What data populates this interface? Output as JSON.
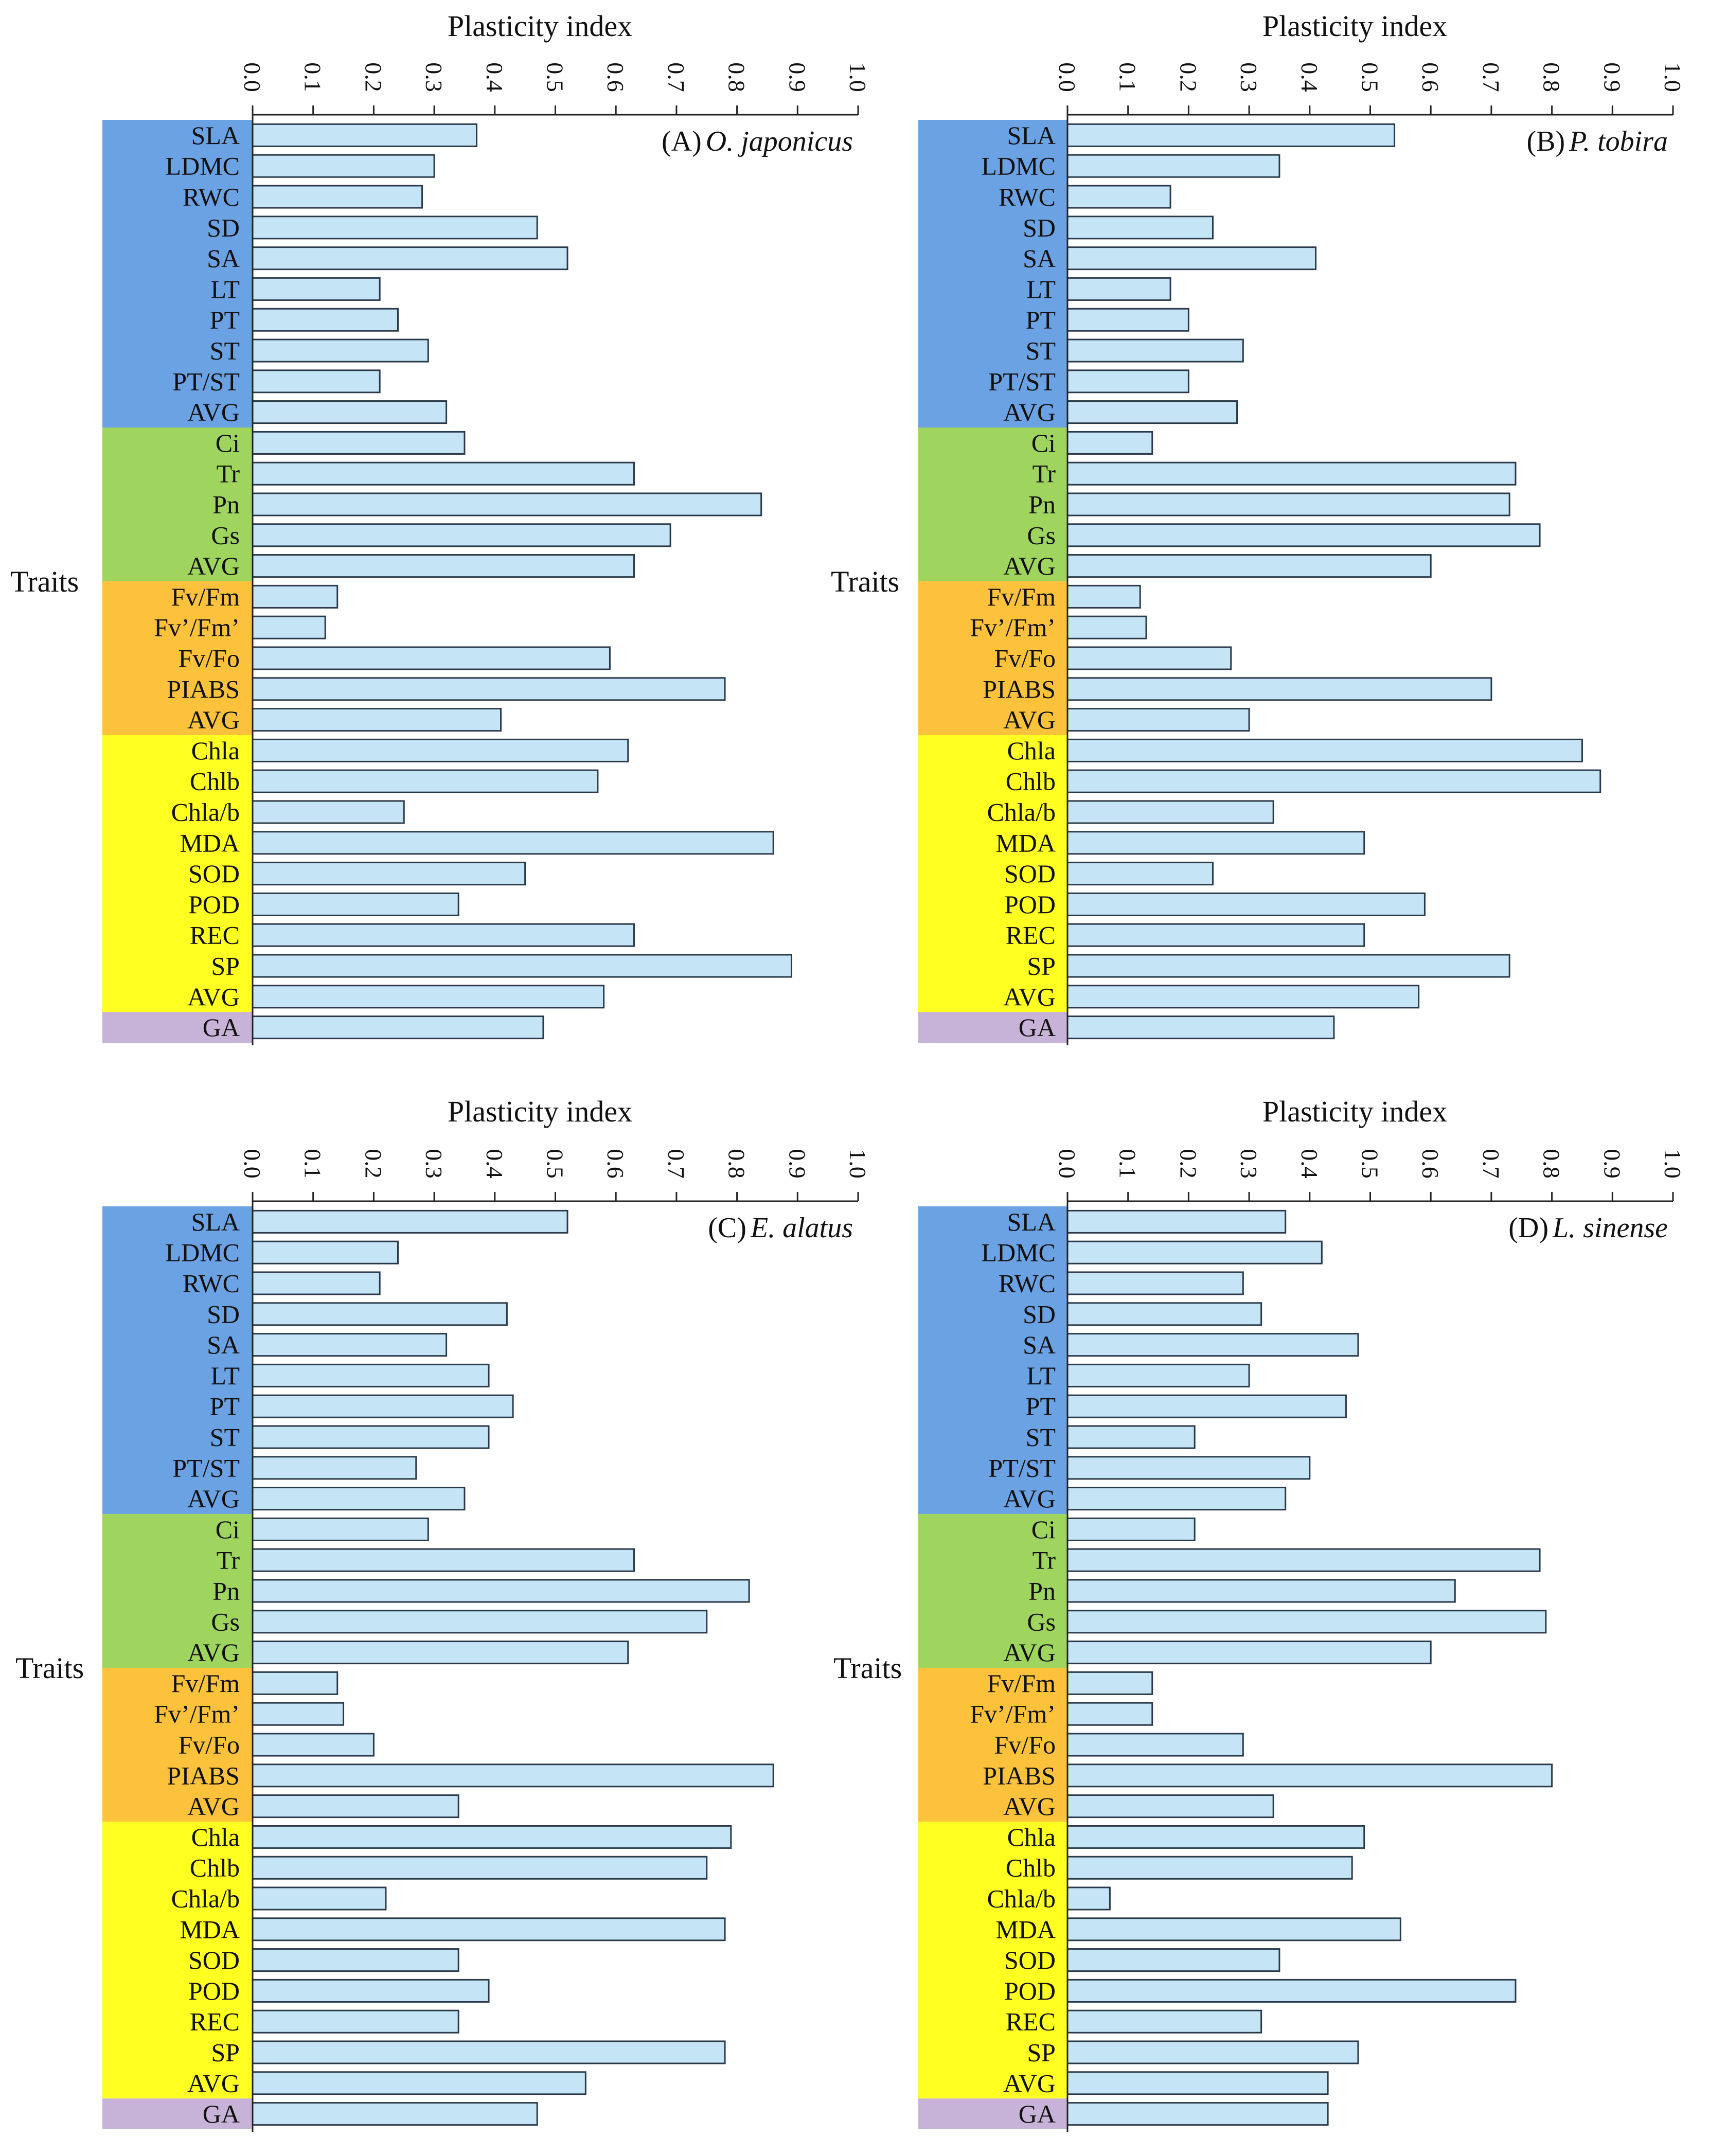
{
  "figure": {
    "x_axis_title": "Plasticity index",
    "y_axis_title": "Traits",
    "x_ticks": [
      "0.0",
      "0.1",
      "0.2",
      "0.3",
      "0.4",
      "0.5",
      "0.6",
      "0.7",
      "0.8",
      "0.9",
      "1.0"
    ],
    "group_colors": {
      "morphological": "#6aa2e3",
      "photosynthetic": "#9fd45f",
      "fluorescence": "#fcc23c",
      "biochemical": "#ffff22",
      "overall": "#c7b3d8"
    },
    "bar_color": "#c5e4f5",
    "bar_stroke": "#2b3a4a"
  },
  "chart_data": [
    {
      "type": "bar",
      "orientation": "horizontal",
      "panel": "(A)",
      "species": "O. japonicus",
      "xlabel": "Plasticity index",
      "ylabel": "Traits",
      "xlim": [
        0,
        1.0
      ],
      "categories": [
        "SLA",
        "LDMC",
        "RWC",
        "SD",
        "SA",
        "LT",
        "PT",
        "ST",
        "PT/ST",
        "AVG",
        "Ci",
        "Tr",
        "Pn",
        "Gs",
        "AVG",
        "Fv/Fm",
        "Fv’/Fm’",
        "Fv/Fo",
        "PIABS",
        "AVG",
        "Chla",
        "Chlb",
        "Chla/b",
        "MDA",
        "SOD",
        "POD",
        "REC",
        "SP",
        "AVG",
        "GA"
      ],
      "groups": [
        "morphological",
        "morphological",
        "morphological",
        "morphological",
        "morphological",
        "morphological",
        "morphological",
        "morphological",
        "morphological",
        "morphological",
        "photosynthetic",
        "photosynthetic",
        "photosynthetic",
        "photosynthetic",
        "photosynthetic",
        "fluorescence",
        "fluorescence",
        "fluorescence",
        "fluorescence",
        "fluorescence",
        "biochemical",
        "biochemical",
        "biochemical",
        "biochemical",
        "biochemical",
        "biochemical",
        "biochemical",
        "biochemical",
        "biochemical",
        "overall"
      ],
      "values": [
        0.37,
        0.3,
        0.28,
        0.47,
        0.52,
        0.21,
        0.24,
        0.29,
        0.21,
        0.32,
        0.35,
        0.63,
        0.84,
        0.69,
        0.63,
        0.14,
        0.12,
        0.59,
        0.78,
        0.41,
        0.62,
        0.57,
        0.25,
        0.86,
        0.45,
        0.34,
        0.63,
        0.89,
        0.58,
        0.48
      ]
    },
    {
      "type": "bar",
      "orientation": "horizontal",
      "panel": "(B)",
      "species": "P. tobira",
      "xlabel": "Plasticity index",
      "ylabel": "Traits",
      "xlim": [
        0,
        1.0
      ],
      "categories": [
        "SLA",
        "LDMC",
        "RWC",
        "SD",
        "SA",
        "LT",
        "PT",
        "ST",
        "PT/ST",
        "AVG",
        "Ci",
        "Tr",
        "Pn",
        "Gs",
        "AVG",
        "Fv/Fm",
        "Fv’/Fm’",
        "Fv/Fo",
        "PIABS",
        "AVG",
        "Chla",
        "Chlb",
        "Chla/b",
        "MDA",
        "SOD",
        "POD",
        "REC",
        "SP",
        "AVG",
        "GA"
      ],
      "groups": [
        "morphological",
        "morphological",
        "morphological",
        "morphological",
        "morphological",
        "morphological",
        "morphological",
        "morphological",
        "morphological",
        "morphological",
        "photosynthetic",
        "photosynthetic",
        "photosynthetic",
        "photosynthetic",
        "photosynthetic",
        "fluorescence",
        "fluorescence",
        "fluorescence",
        "fluorescence",
        "fluorescence",
        "biochemical",
        "biochemical",
        "biochemical",
        "biochemical",
        "biochemical",
        "biochemical",
        "biochemical",
        "biochemical",
        "biochemical",
        "overall"
      ],
      "values": [
        0.54,
        0.35,
        0.17,
        0.24,
        0.41,
        0.17,
        0.2,
        0.29,
        0.2,
        0.28,
        0.14,
        0.74,
        0.73,
        0.78,
        0.6,
        0.12,
        0.13,
        0.27,
        0.7,
        0.3,
        0.85,
        0.88,
        0.34,
        0.49,
        0.24,
        0.59,
        0.49,
        0.73,
        0.58,
        0.44
      ]
    },
    {
      "type": "bar",
      "orientation": "horizontal",
      "panel": "(C)",
      "species": "E. alatus",
      "xlabel": "Plasticity index",
      "ylabel": "Traits",
      "xlim": [
        0,
        1.0
      ],
      "categories": [
        "SLA",
        "LDMC",
        "RWC",
        "SD",
        "SA",
        "LT",
        "PT",
        "ST",
        "PT/ST",
        "AVG",
        "Ci",
        "Tr",
        "Pn",
        "Gs",
        "AVG",
        "Fv/Fm",
        "Fv’/Fm’",
        "Fv/Fo",
        "PIABS",
        "AVG",
        "Chla",
        "Chlb",
        "Chla/b",
        "MDA",
        "SOD",
        "POD",
        "REC",
        "SP",
        "AVG",
        "GA"
      ],
      "groups": [
        "morphological",
        "morphological",
        "morphological",
        "morphological",
        "morphological",
        "morphological",
        "morphological",
        "morphological",
        "morphological",
        "morphological",
        "photosynthetic",
        "photosynthetic",
        "photosynthetic",
        "photosynthetic",
        "photosynthetic",
        "fluorescence",
        "fluorescence",
        "fluorescence",
        "fluorescence",
        "fluorescence",
        "biochemical",
        "biochemical",
        "biochemical",
        "biochemical",
        "biochemical",
        "biochemical",
        "biochemical",
        "biochemical",
        "biochemical",
        "overall"
      ],
      "values": [
        0.52,
        0.24,
        0.21,
        0.42,
        0.32,
        0.39,
        0.43,
        0.39,
        0.27,
        0.35,
        0.29,
        0.63,
        0.82,
        0.75,
        0.62,
        0.14,
        0.15,
        0.2,
        0.86,
        0.34,
        0.79,
        0.75,
        0.22,
        0.78,
        0.34,
        0.39,
        0.34,
        0.78,
        0.55,
        0.47
      ]
    },
    {
      "type": "bar",
      "orientation": "horizontal",
      "panel": "(D)",
      "species": "L. sinense",
      "xlabel": "Plasticity index",
      "ylabel": "Traits",
      "xlim": [
        0,
        1.0
      ],
      "categories": [
        "SLA",
        "LDMC",
        "RWC",
        "SD",
        "SA",
        "LT",
        "PT",
        "ST",
        "PT/ST",
        "AVG",
        "Ci",
        "Tr",
        "Pn",
        "Gs",
        "AVG",
        "Fv/Fm",
        "Fv’/Fm’",
        "Fv/Fo",
        "PIABS",
        "AVG",
        "Chla",
        "Chlb",
        "Chla/b",
        "MDA",
        "SOD",
        "POD",
        "REC",
        "SP",
        "AVG",
        "GA"
      ],
      "groups": [
        "morphological",
        "morphological",
        "morphological",
        "morphological",
        "morphological",
        "morphological",
        "morphological",
        "morphological",
        "morphological",
        "morphological",
        "photosynthetic",
        "photosynthetic",
        "photosynthetic",
        "photosynthetic",
        "photosynthetic",
        "fluorescence",
        "fluorescence",
        "fluorescence",
        "fluorescence",
        "fluorescence",
        "biochemical",
        "biochemical",
        "biochemical",
        "biochemical",
        "biochemical",
        "biochemical",
        "biochemical",
        "biochemical",
        "biochemical",
        "overall"
      ],
      "values": [
        0.36,
        0.42,
        0.29,
        0.32,
        0.48,
        0.3,
        0.46,
        0.21,
        0.4,
        0.36,
        0.21,
        0.78,
        0.64,
        0.79,
        0.6,
        0.14,
        0.14,
        0.29,
        0.8,
        0.34,
        0.49,
        0.47,
        0.07,
        0.55,
        0.35,
        0.74,
        0.32,
        0.48,
        0.43,
        0.43
      ]
    }
  ]
}
